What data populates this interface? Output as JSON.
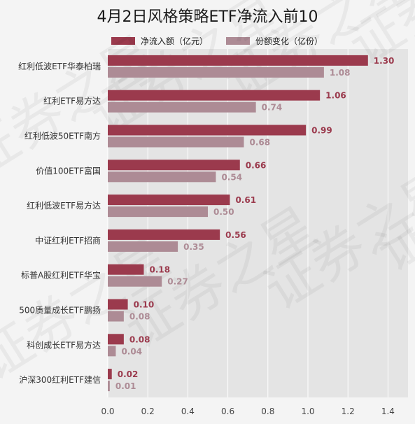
{
  "colors": {
    "primary": "#9b3a4d",
    "secondary": "#ad8b95",
    "plot_bg": "#e4e4e4",
    "grid": "#ffffff"
  },
  "chart_data": {
    "type": "bar",
    "orientation": "horizontal",
    "title": "4月2日风格策略ETF净流入前10",
    "categories": [
      "红利低波ETF华泰柏瑞",
      "红利ETF易方达",
      "红利低波50ETF南方",
      "价值100ETF富国",
      "红利低波ETF易方达",
      "中证红利ETF招商",
      "标普A股红利ETF华宝",
      "500质量成长ETF鹏扬",
      "科创成长ETF易方达",
      "沪深300红利ETF建信"
    ],
    "series": [
      {
        "name": "净流入额（亿元）",
        "values": [
          1.3,
          1.06,
          0.99,
          0.66,
          0.61,
          0.56,
          0.18,
          0.1,
          0.08,
          0.02
        ],
        "labels": [
          "1.30",
          "1.06",
          "0.99",
          "0.66",
          "0.61",
          "0.56",
          "0.18",
          "0.10",
          "0.08",
          "0.02"
        ]
      },
      {
        "name": "份额变化（亿份）",
        "values": [
          1.08,
          0.74,
          0.68,
          0.54,
          0.5,
          0.35,
          0.27,
          0.08,
          0.04,
          0.01
        ],
        "labels": [
          "1.08",
          "0.74",
          "0.68",
          "0.54",
          "0.50",
          "0.35",
          "0.27",
          "0.08",
          "0.04",
          "0.01"
        ]
      }
    ],
    "xlim": [
      0,
      1.5
    ],
    "xticks": [
      "0.0",
      "0.2",
      "0.4",
      "0.6",
      "0.8",
      "1.0",
      "1.2",
      "1.4"
    ],
    "xtick_values": [
      0,
      0.2,
      0.4,
      0.6,
      0.8,
      1.0,
      1.2,
      1.4
    ],
    "grid": true,
    "legend_position": "top",
    "watermark": "证券之星"
  }
}
